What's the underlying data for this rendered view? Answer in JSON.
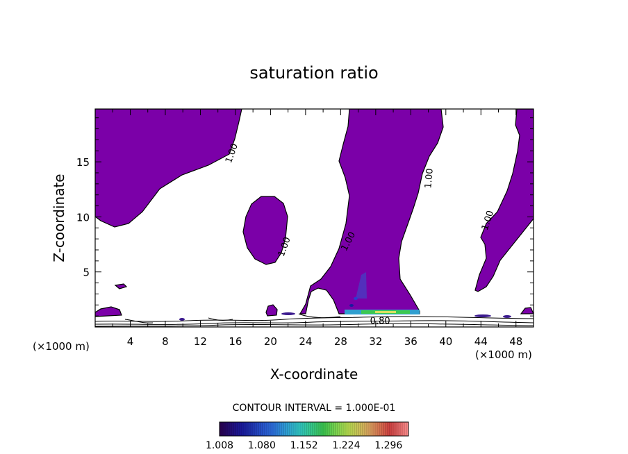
{
  "chart_data": {
    "type": "contour",
    "title": "saturation ratio",
    "xlabel": "X-coordinate",
    "ylabel": "Z-coordinate",
    "x_unit_left": "(×1000 m)",
    "x_unit_right": "(×1000 m)",
    "xlim": [
      0,
      50
    ],
    "ylim": [
      0,
      19.8
    ],
    "x_ticks": [
      4,
      8,
      12,
      16,
      20,
      24,
      28,
      32,
      36,
      40,
      44,
      48
    ],
    "y_ticks": [
      5,
      10,
      15
    ],
    "contour_interval_text": "CONTOUR INTERVAL = 1.000E-01",
    "contour_labels": [
      {
        "text": "1.00",
        "x": 15.5,
        "z": 15.8
      },
      {
        "text": "1.00",
        "x": 21.5,
        "z": 7.3
      },
      {
        "text": "1.00",
        "x": 28.8,
        "z": 7.8
      },
      {
        "text": "1.00",
        "x": 38.0,
        "z": 13.5
      },
      {
        "text": "1.00",
        "x": 44.7,
        "z": 9.7
      },
      {
        "text": "0.80",
        "x": 32.5,
        "z": 0.6
      }
    ],
    "colorbar": {
      "ticks": [
        "1.008",
        "1.080",
        "1.152",
        "1.224",
        "1.296"
      ],
      "min": 1.008,
      "max": 1.33
    },
    "colors": {
      "supersaturated_fill": "#7b00a8",
      "outline": "#000000"
    }
  }
}
